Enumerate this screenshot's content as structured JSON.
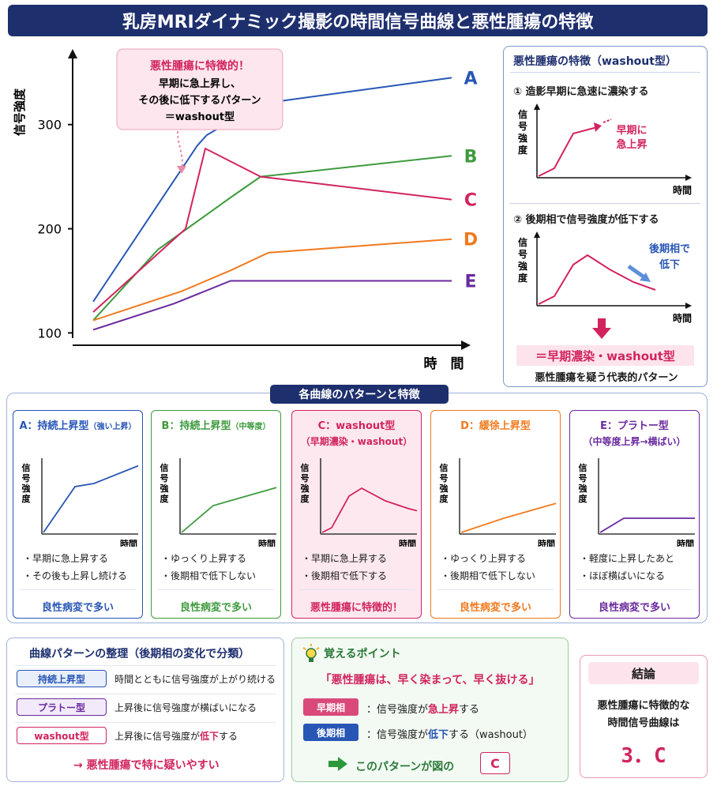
{
  "title": "乳房MRIダイナミック撮影の時間信号曲線と悪性腫瘍の特徴",
  "callout": {
    "head": "悪性腫瘍に特徴的！",
    "line1": "早期に急上昇し、",
    "line2": "その後に低下するパターン",
    "line3": "＝washout型"
  },
  "chart_data": {
    "type": "line",
    "ylabel": "信号強度",
    "xlabel": "時　間",
    "yticks": [
      100,
      200,
      300
    ],
    "ylim": [
      95,
      365
    ],
    "x": [
      0,
      1,
      2,
      3,
      4
    ],
    "series": [
      {
        "name": "A",
        "color": "#2856b5",
        "values": [
          130,
          280,
          290,
          320,
          345
        ]
      },
      {
        "name": "B",
        "color": "#3e9a3e",
        "values": [
          112,
          180,
          230,
          250,
          270
        ]
      },
      {
        "name": "C",
        "color": "#d1245e",
        "values": [
          120,
          200,
          277,
          250,
          228
        ]
      },
      {
        "name": "D",
        "color": "#f07a1e",
        "values": [
          112,
          140,
          160,
          177,
          190
        ]
      },
      {
        "name": "E",
        "color": "#6a2a9e",
        "values": [
          103,
          128,
          150,
          150,
          150
        ]
      }
    ]
  },
  "side": {
    "head": "悪性腫瘍の特徴（washout型）",
    "step1": "①  造影早期に急速に濃染する",
    "step1_note1": "早期に",
    "step1_note2": "急上昇",
    "step2": "②  後期相で信号強度が低下する",
    "step2_note1": "後期相で",
    "step2_note2": "低下",
    "axis_y": [
      "信",
      "号",
      "強",
      "度"
    ],
    "axis_x": "時間",
    "conclusion1": "＝早期濃染・washout型",
    "conclusion2": "悪性腫瘍を疑う代表的パターン"
  },
  "section_title": "各曲線のパターンと特徴",
  "cards": [
    {
      "title": "A：持続上昇型",
      "title_small": "（強い上昇）",
      "sub": "",
      "b1": "・早期に急上昇する",
      "b2": "・その後も上昇し続ける",
      "foot": "良性病変で多い",
      "color": "#2856b5"
    },
    {
      "title": "B：持続上昇型",
      "title_small": "（中等度）",
      "sub": "",
      "b1": "・ゆっくり上昇する",
      "b2": "・後期相で低下しない",
      "foot": "良性病変で多い",
      "color": "#3e9a3e"
    },
    {
      "title": "C：washout型",
      "title_small": "",
      "sub": "（早期濃染・washout）",
      "b1": "・早期に急上昇する",
      "b2": "・後期相で低下する",
      "foot": "悪性腫瘍に特徴的！",
      "color": "#d1245e"
    },
    {
      "title": "D：緩徐上昇型",
      "title_small": "",
      "sub": "",
      "b1": "・ゆっくり上昇する",
      "b2": "・後期相で低下しない",
      "foot": "良性病変で多い",
      "color": "#f07a1e"
    },
    {
      "title": "E：プラトー型",
      "title_small": "",
      "sub": "（中等度上昇→横ばい）",
      "b1": "・軽度に上昇したあと",
      "b2": "・ほぼ横ばいになる",
      "foot": "良性病変で多い",
      "color": "#6a2a9e"
    }
  ],
  "summary": {
    "head": "曲線パターンの整理（後期相の変化で分類）",
    "rows": [
      {
        "pill": "持続上昇型",
        "desc": "時間とともに信号強度が上がり続ける"
      },
      {
        "pill": "プラトー型",
        "desc": "上昇後に信号強度が横ばいになる"
      },
      {
        "pill": "washout型",
        "desc_a": "上昇後に信号強度が",
        "desc_b": "低下",
        "desc_c": "する"
      }
    ],
    "footer": "→  悪性腫瘍で特に疑いやすい"
  },
  "points": {
    "head": "覚えるポイント",
    "quote": "「悪性腫瘍は、早く染まって、早く抜ける」",
    "tag1": "早期相",
    "t1a": "：信号強度が",
    "t1b": "急上昇",
    "t1c": "する",
    "tag2": "後期相",
    "t2a": "：信号強度が",
    "t2b": "低下",
    "t2c": "する（washout）",
    "footer": "このパターンが図の",
    "answer": "C"
  },
  "conclusion": {
    "head": "結論",
    "l1": "悪性腫瘍に特徴的な",
    "l2": "時間信号曲線は",
    "answer": "3．C"
  }
}
